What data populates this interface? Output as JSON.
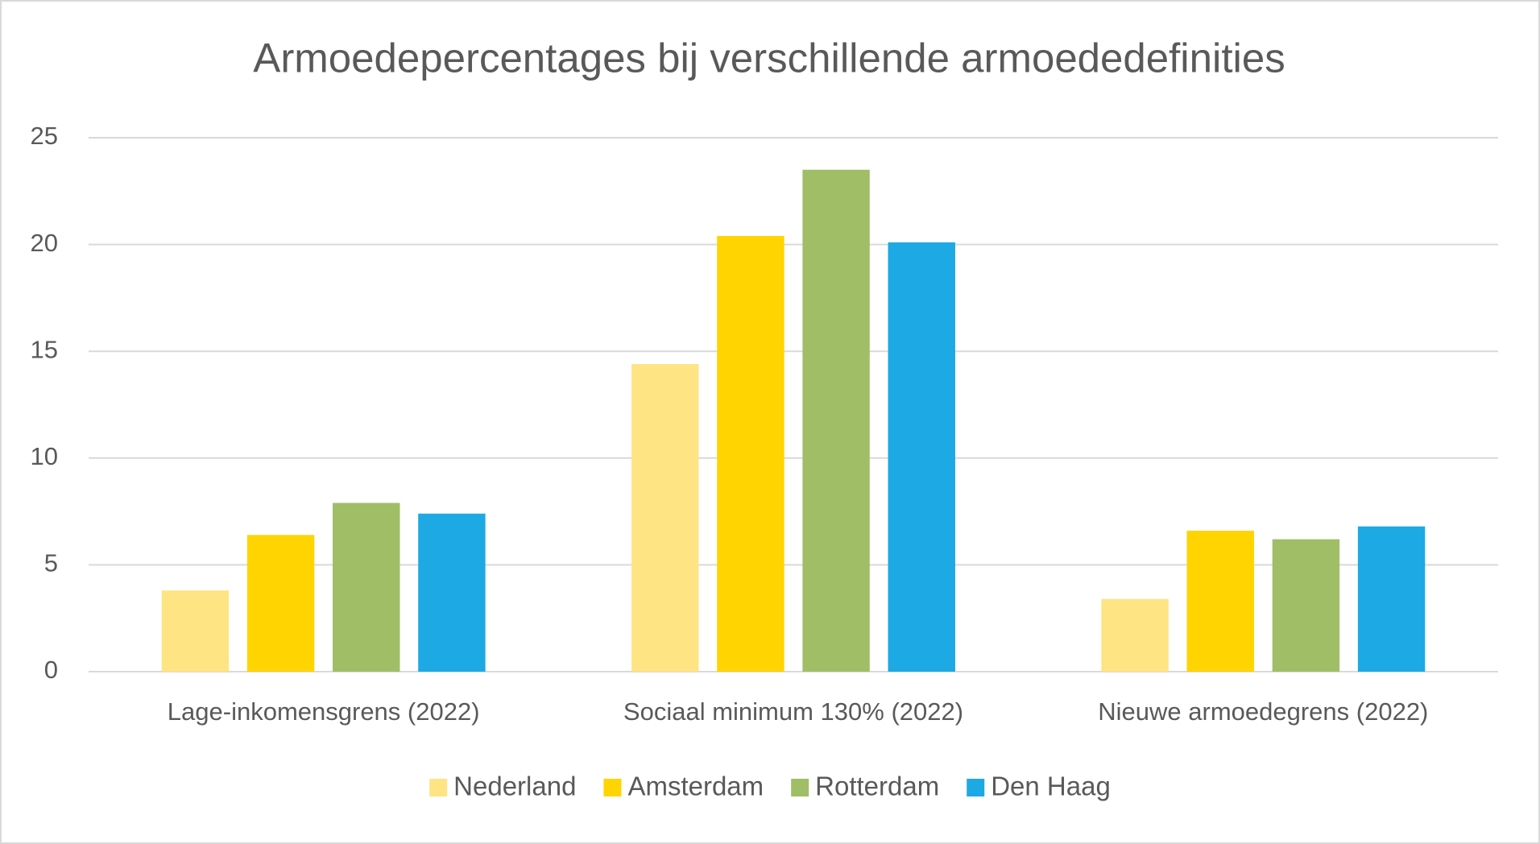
{
  "chart_data": {
    "type": "bar",
    "title": "Armoedepercentages bij verschillende armoededefinities",
    "categories": [
      "Lage-inkomensgrens (2022)",
      "Sociaal minimum 130% (2022)",
      "Nieuwe armoedegrens (2022)"
    ],
    "series": [
      {
        "name": "Nederland",
        "color": "#fee483",
        "values": [
          3.8,
          14.4,
          3.4
        ]
      },
      {
        "name": "Amsterdam",
        "color": "#ffd400",
        "values": [
          6.4,
          20.4,
          6.6
        ]
      },
      {
        "name": "Rotterdam",
        "color": "#9fbe66",
        "values": [
          7.9,
          23.5,
          6.2
        ]
      },
      {
        "name": "Den Haag",
        "color": "#1da9e3",
        "values": [
          7.4,
          20.1,
          6.8
        ]
      }
    ],
    "ylim": [
      0,
      25
    ],
    "yticks": [
      0,
      5,
      10,
      15,
      20,
      25
    ],
    "grid": true,
    "legend": "bottom"
  }
}
